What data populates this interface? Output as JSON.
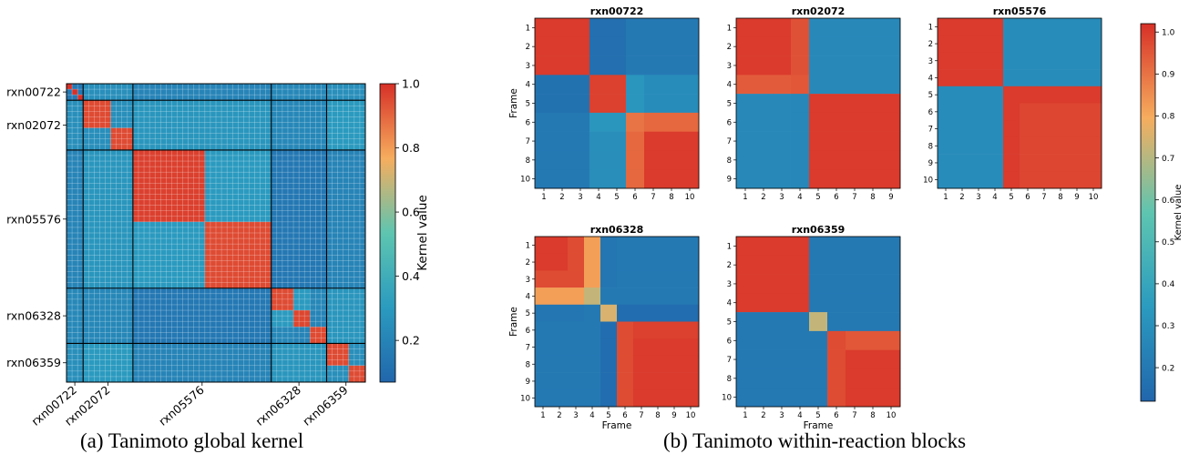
{
  "captions": {
    "a": "(a) Tanimoto global kernel",
    "b": "(b) Tanimoto within-reaction blocks"
  },
  "colors": {
    "low": "#2166ac",
    "mid_low": "#2b9bbf",
    "mid": "#5ec5b0",
    "mid_high": "#f6ad5e",
    "high": "#d73027",
    "grid_line": "#ffffff",
    "block_line": "#000000"
  },
  "chart_data": [
    {
      "type": "heatmap",
      "title": "",
      "xlabel": "",
      "ylabel": "",
      "groups": [
        "rxn00722",
        "rxn02072",
        "rxn05576",
        "rxn06328",
        "rxn06359"
      ],
      "group_sizes": [
        3,
        9,
        25,
        10,
        7
      ],
      "within_block_values": [
        [
          [
            1.0,
            0.15,
            0.15
          ],
          [
            0.15,
            1.0,
            0.15
          ],
          [
            0.15,
            0.15,
            1.0
          ]
        ],
        [
          [
            0.95,
            0.25
          ],
          [
            0.25,
            0.95
          ]
        ],
        [
          [
            0.97,
            0.3
          ],
          [
            0.3,
            0.95
          ]
        ],
        [
          [
            0.95,
            0.3,
            0.22
          ],
          [
            0.3,
            0.96,
            0.2
          ],
          [
            0.22,
            0.2,
            0.95
          ]
        ],
        [
          [
            0.95,
            0.25
          ],
          [
            0.25,
            0.95
          ]
        ]
      ],
      "between_block_values": [
        [
          1.0,
          0.25,
          0.2,
          0.22,
          0.25
        ],
        [
          0.25,
          1.0,
          0.28,
          0.22,
          0.3
        ],
        [
          0.2,
          0.28,
          1.0,
          0.15,
          0.2
        ],
        [
          0.22,
          0.22,
          0.15,
          1.0,
          0.28
        ],
        [
          0.25,
          0.3,
          0.2,
          0.28,
          1.0
        ]
      ],
      "colorbar": {
        "label": "Kernel value",
        "min": 0.07,
        "max": 1.0,
        "ticks": [
          0.2,
          0.4,
          0.6,
          0.8,
          1.0
        ]
      }
    },
    {
      "type": "heatmap",
      "title": "rxn00722",
      "xlabel": "",
      "ylabel": "Frame",
      "frames": [
        "1",
        "2",
        "3",
        "4",
        "5",
        "6",
        "7",
        "8",
        "10"
      ],
      "values": [
        [
          1.0,
          1.0,
          1.0,
          0.16,
          0.16,
          0.2,
          0.2,
          0.2,
          0.2
        ],
        [
          1.0,
          1.0,
          1.0,
          0.16,
          0.16,
          0.2,
          0.2,
          0.2,
          0.2
        ],
        [
          1.0,
          1.0,
          1.0,
          0.16,
          0.16,
          0.2,
          0.2,
          0.2,
          0.2
        ],
        [
          0.17,
          0.17,
          0.17,
          0.99,
          0.99,
          0.32,
          0.28,
          0.28,
          0.28
        ],
        [
          0.17,
          0.17,
          0.17,
          0.99,
          0.99,
          0.32,
          0.28,
          0.28,
          0.28
        ],
        [
          0.2,
          0.2,
          0.2,
          0.32,
          0.32,
          0.9,
          0.92,
          0.92,
          0.92
        ],
        [
          0.2,
          0.2,
          0.2,
          0.29,
          0.29,
          0.92,
          1.0,
          1.0,
          1.0
        ],
        [
          0.2,
          0.2,
          0.2,
          0.29,
          0.29,
          0.92,
          1.0,
          1.0,
          1.0
        ],
        [
          0.2,
          0.2,
          0.2,
          0.29,
          0.29,
          0.92,
          1.0,
          1.0,
          1.0
        ]
      ]
    },
    {
      "type": "heatmap",
      "title": "rxn02072",
      "xlabel": "",
      "ylabel": "",
      "frames": [
        "1",
        "2",
        "3",
        "4",
        "5",
        "6",
        "7",
        "8",
        "9"
      ],
      "values": [
        [
          1.0,
          1.0,
          1.0,
          0.96,
          0.27,
          0.27,
          0.27,
          0.27,
          0.27
        ],
        [
          1.0,
          1.0,
          1.0,
          0.96,
          0.27,
          0.27,
          0.27,
          0.27,
          0.27
        ],
        [
          1.0,
          1.0,
          1.0,
          0.96,
          0.27,
          0.27,
          0.27,
          0.27,
          0.27
        ],
        [
          0.94,
          0.94,
          0.94,
          0.95,
          0.27,
          0.27,
          0.27,
          0.27,
          0.27
        ],
        [
          0.27,
          0.27,
          0.27,
          0.26,
          1.0,
          1.0,
          1.0,
          1.0,
          1.0
        ],
        [
          0.27,
          0.27,
          0.27,
          0.26,
          1.0,
          1.0,
          1.0,
          1.0,
          1.0
        ],
        [
          0.27,
          0.27,
          0.27,
          0.26,
          1.0,
          1.0,
          1.0,
          1.0,
          1.0
        ],
        [
          0.27,
          0.27,
          0.27,
          0.26,
          1.0,
          1.0,
          1.0,
          1.0,
          1.0
        ],
        [
          0.27,
          0.27,
          0.27,
          0.26,
          1.0,
          1.0,
          1.0,
          1.0,
          1.0
        ]
      ]
    },
    {
      "type": "heatmap",
      "title": "rxn05576",
      "xlabel": "",
      "ylabel": "",
      "frames": [
        "1",
        "2",
        "3",
        "4",
        "5",
        "6",
        "7",
        "8",
        "9",
        "10"
      ],
      "values": [
        [
          1.0,
          1.0,
          1.0,
          1.0,
          0.28,
          0.28,
          0.28,
          0.28,
          0.28,
          0.28
        ],
        [
          1.0,
          1.0,
          1.0,
          1.0,
          0.28,
          0.28,
          0.28,
          0.28,
          0.28,
          0.28
        ],
        [
          1.0,
          1.0,
          1.0,
          1.0,
          0.28,
          0.28,
          0.28,
          0.28,
          0.28,
          0.28
        ],
        [
          1.0,
          1.0,
          1.0,
          1.0,
          0.28,
          0.28,
          0.28,
          0.28,
          0.28,
          0.28
        ],
        [
          0.28,
          0.28,
          0.28,
          0.28,
          1.0,
          1.0,
          1.0,
          1.0,
          1.0,
          1.0
        ],
        [
          0.28,
          0.28,
          0.28,
          0.28,
          1.0,
          0.98,
          0.98,
          0.98,
          0.98,
          0.98
        ],
        [
          0.28,
          0.28,
          0.28,
          0.28,
          1.0,
          0.98,
          0.98,
          0.98,
          0.98,
          0.98
        ],
        [
          0.28,
          0.28,
          0.28,
          0.28,
          1.0,
          0.98,
          0.98,
          0.98,
          0.98,
          0.98
        ],
        [
          0.28,
          0.28,
          0.28,
          0.28,
          1.0,
          0.98,
          0.98,
          0.98,
          0.98,
          0.98
        ],
        [
          0.28,
          0.28,
          0.28,
          0.28,
          1.0,
          0.98,
          0.98,
          0.98,
          0.98,
          0.98
        ]
      ]
    },
    {
      "type": "heatmap",
      "title": "rxn06328",
      "xlabel": "Frame",
      "ylabel": "Frame",
      "frames": [
        "1",
        "2",
        "3",
        "4",
        "5",
        "6",
        "7",
        "8",
        "9",
        "10"
      ],
      "values": [
        [
          1.0,
          1.0,
          0.97,
          0.82,
          0.19,
          0.2,
          0.2,
          0.2,
          0.2,
          0.2
        ],
        [
          1.0,
          1.0,
          0.97,
          0.82,
          0.19,
          0.2,
          0.2,
          0.2,
          0.2,
          0.2
        ],
        [
          0.97,
          0.97,
          0.97,
          0.82,
          0.19,
          0.2,
          0.2,
          0.2,
          0.2,
          0.2
        ],
        [
          0.82,
          0.82,
          0.82,
          0.72,
          0.2,
          0.2,
          0.2,
          0.2,
          0.2,
          0.2
        ],
        [
          0.19,
          0.19,
          0.19,
          0.2,
          0.75,
          0.15,
          0.15,
          0.15,
          0.15,
          0.15
        ],
        [
          0.2,
          0.2,
          0.2,
          0.2,
          0.15,
          0.97,
          0.99,
          0.99,
          0.99,
          0.99
        ],
        [
          0.2,
          0.2,
          0.2,
          0.2,
          0.15,
          0.97,
          1.0,
          1.0,
          1.0,
          1.0
        ],
        [
          0.2,
          0.2,
          0.2,
          0.2,
          0.15,
          0.97,
          1.0,
          1.0,
          1.0,
          1.0
        ],
        [
          0.2,
          0.2,
          0.2,
          0.2,
          0.15,
          0.97,
          1.0,
          1.0,
          1.0,
          1.0
        ],
        [
          0.2,
          0.2,
          0.2,
          0.2,
          0.15,
          0.97,
          1.0,
          1.0,
          1.0,
          1.0
        ]
      ]
    },
    {
      "type": "heatmap",
      "title": "rxn06359",
      "xlabel": "Frame",
      "ylabel": "",
      "frames": [
        "1",
        "2",
        "3",
        "4",
        "5",
        "6",
        "7",
        "8",
        "10"
      ],
      "values": [
        [
          1.0,
          1.0,
          1.0,
          1.0,
          0.2,
          0.2,
          0.2,
          0.2,
          0.2
        ],
        [
          1.0,
          1.0,
          1.0,
          1.0,
          0.2,
          0.2,
          0.2,
          0.2,
          0.2
        ],
        [
          1.0,
          1.0,
          1.0,
          1.0,
          0.2,
          0.2,
          0.2,
          0.2,
          0.2
        ],
        [
          1.0,
          1.0,
          1.0,
          1.0,
          0.2,
          0.2,
          0.2,
          0.2,
          0.2
        ],
        [
          0.2,
          0.2,
          0.2,
          0.2,
          0.72,
          0.2,
          0.2,
          0.2,
          0.2
        ],
        [
          0.2,
          0.2,
          0.2,
          0.2,
          0.2,
          0.97,
          0.95,
          0.95,
          0.95
        ],
        [
          0.2,
          0.2,
          0.2,
          0.2,
          0.2,
          0.97,
          1.0,
          1.0,
          1.0
        ],
        [
          0.2,
          0.2,
          0.2,
          0.2,
          0.2,
          0.97,
          1.0,
          1.0,
          1.0
        ],
        [
          0.2,
          0.2,
          0.2,
          0.2,
          0.2,
          0.97,
          1.0,
          1.0,
          1.0
        ]
      ]
    },
    {
      "type": "heatmap",
      "title": "",
      "colorbar": {
        "label": "Kernel value",
        "min": 0.12,
        "max": 1.02,
        "ticks": [
          0.2,
          0.3,
          0.4,
          0.5,
          0.6,
          0.7,
          0.8,
          0.9,
          1.0
        ],
        "tick_labels": [
          "0.2",
          "0.3",
          "0.4",
          "0.5",
          "0.6",
          "0.7",
          "0.8",
          "0.9",
          "1.0"
        ]
      }
    }
  ]
}
